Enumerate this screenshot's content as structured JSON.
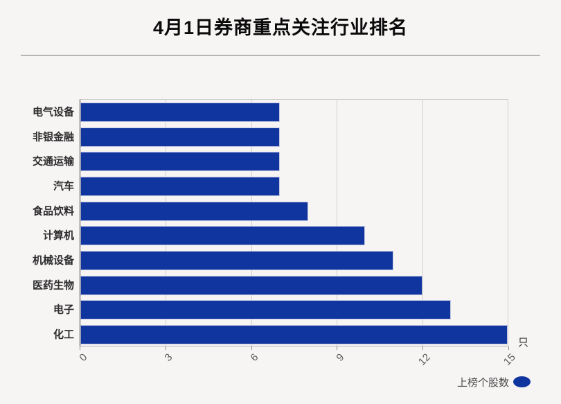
{
  "header": {
    "title": "4月1日券商重点关注行业排名"
  },
  "chart_data": {
    "type": "bar",
    "orientation": "horizontal",
    "title": "4月1日券商重点关注行业排名",
    "categories": [
      "电气设备",
      "非银金融",
      "交通运输",
      "汽车",
      "食品饮料",
      "计算机",
      "机械设备",
      "医药生物",
      "电子",
      "化工"
    ],
    "series": [
      {
        "name": "上榜个股数",
        "values": [
          7,
          7,
          7,
          7,
          8,
          10,
          11,
          12,
          13,
          15
        ]
      }
    ],
    "xlabel": "",
    "ylabel": "",
    "x_unit": "只",
    "xlim": [
      0,
      15
    ],
    "xticks": [
      0,
      3,
      6,
      9,
      12,
      15
    ],
    "grid": true,
    "legend_position": "bottom-right",
    "bar_color": "#10359f",
    "bar_border_color": "#c3c9e2",
    "background_color": "#f7f4f4"
  },
  "legend": {
    "label": "上榜个股数"
  },
  "axis": {
    "unit_label": "只"
  }
}
